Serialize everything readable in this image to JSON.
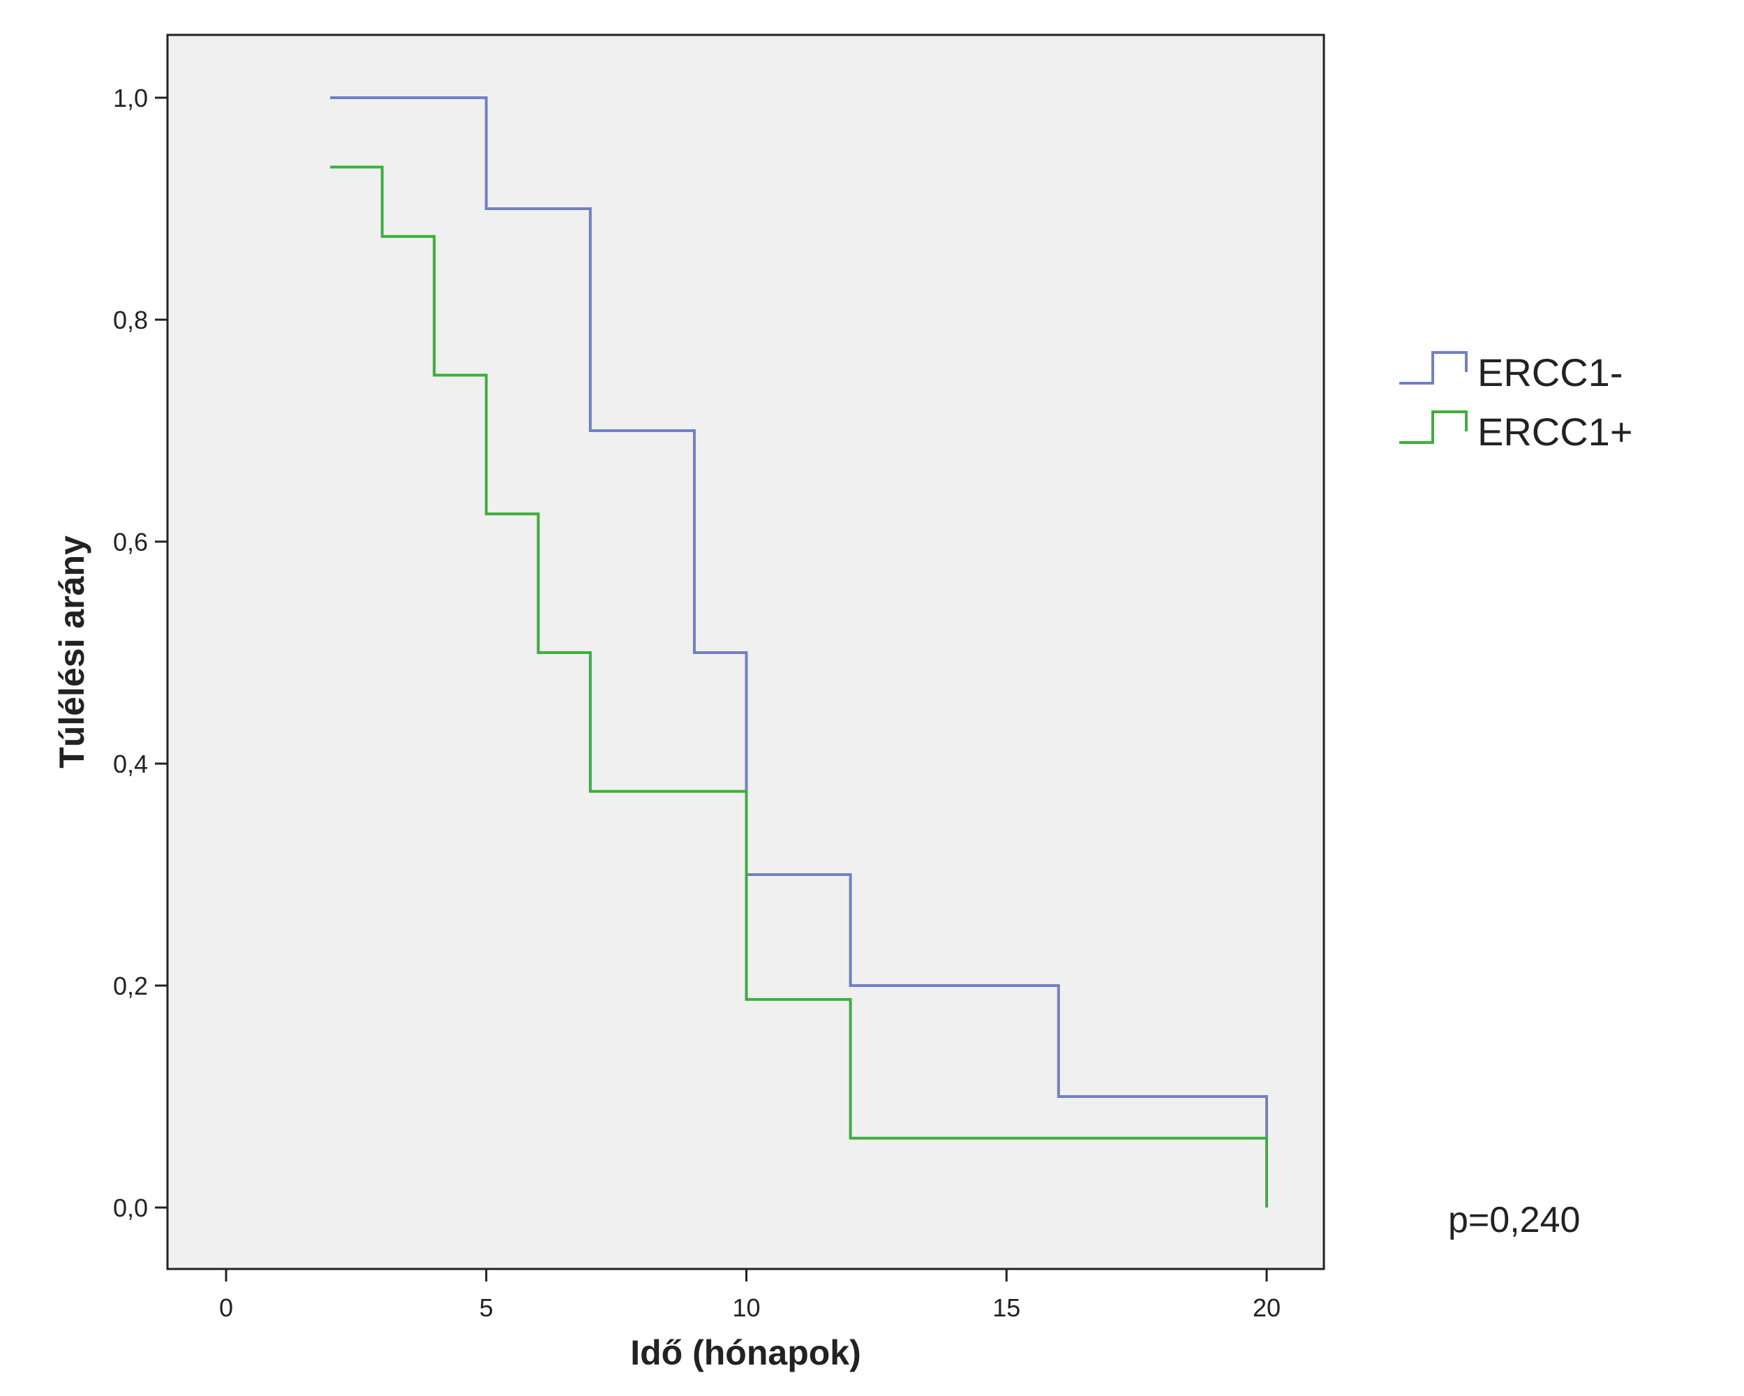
{
  "chart_data": {
    "type": "line",
    "subtype": "kaplan-meier-step",
    "title": "",
    "xlabel": "Idő (hónapok)",
    "ylabel": "Túlélési arány",
    "xlim": [
      -2.2,
      20.2
    ],
    "ylim": [
      -0.055,
      1.055
    ],
    "x_ticks": [
      0,
      5,
      10,
      15,
      20
    ],
    "x_tick_labels": [
      "0",
      "5",
      "10",
      "15",
      "20"
    ],
    "y_ticks": [
      0.0,
      0.2,
      0.4,
      0.6,
      0.8,
      1.0
    ],
    "y_tick_labels": [
      "0,0",
      "0,2",
      "0,4",
      "0,6",
      "0,8",
      "1,0"
    ],
    "grid": false,
    "legend_position": "right",
    "series": [
      {
        "name": "ERCC1-",
        "color": "#7080c8",
        "steps": [
          {
            "x": 2,
            "y": 1.0
          },
          {
            "x": 5,
            "y": 0.9
          },
          {
            "x": 7,
            "y": 0.7
          },
          {
            "x": 9,
            "y": 0.5
          },
          {
            "x": 10,
            "y": 0.3
          },
          {
            "x": 12,
            "y": 0.2
          },
          {
            "x": 16,
            "y": 0.1
          },
          {
            "x": 20,
            "y": 0.0
          }
        ]
      },
      {
        "name": "ERCC1+",
        "color": "#3ab03a",
        "steps": [
          {
            "x": 2,
            "y": 0.9375
          },
          {
            "x": 3,
            "y": 0.875
          },
          {
            "x": 4,
            "y": 0.75
          },
          {
            "x": 5,
            "y": 0.625
          },
          {
            "x": 6,
            "y": 0.5
          },
          {
            "x": 7,
            "y": 0.375
          },
          {
            "x": 10,
            "y": 0.1875
          },
          {
            "x": 12,
            "y": 0.0625
          },
          {
            "x": 20,
            "y": 0.0
          }
        ]
      }
    ],
    "annotation": "p=0,240",
    "plot_background": "#f0f0f0",
    "axis_color": "#222222"
  }
}
